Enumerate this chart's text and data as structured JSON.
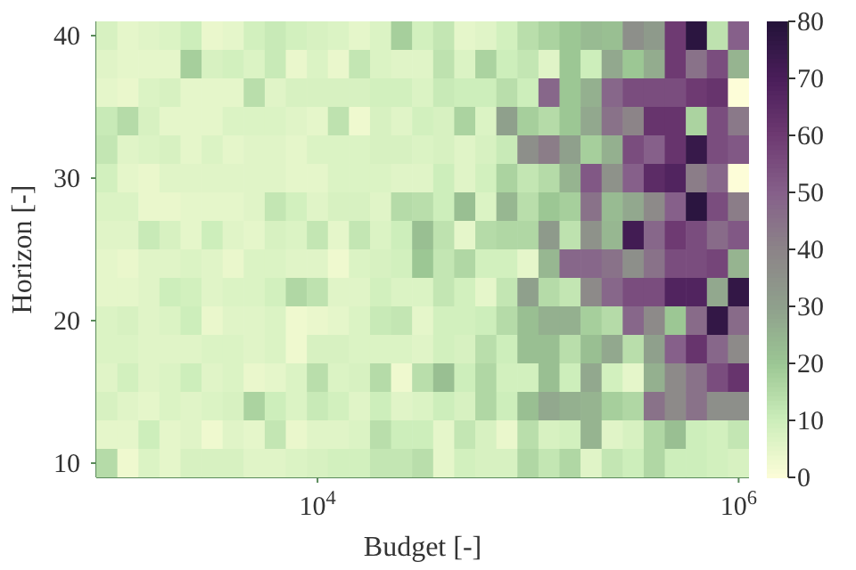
{
  "chart_data": {
    "type": "heatmap",
    "xlabel": "Budget [-]",
    "ylabel": "Horizon [-]",
    "log": "x",
    "xlim": [
      890,
      1120000
    ],
    "xticks": [
      {
        "value": 10000,
        "label": "10$^{4}$"
      },
      {
        "value": 1000000,
        "label": "10$^{6}$"
      }
    ],
    "ylim": [
      9,
      41
    ],
    "yticks": [
      10,
      20,
      30,
      40
    ],
    "clim": [
      0,
      80
    ],
    "cticks": [
      0,
      10,
      20,
      30,
      40,
      50,
      60,
      70,
      80
    ],
    "grid": false,
    "cells": [
      [
        8,
        5,
        6,
        7,
        10,
        4,
        5,
        9,
        11,
        9,
        8,
        7,
        5,
        7,
        18,
        9,
        12,
        5,
        6,
        9,
        14,
        17,
        20,
        23,
        22,
        36,
        32,
        60,
        78,
        13,
        50
      ],
      [
        6,
        5,
        5,
        5,
        18,
        8,
        9,
        7,
        11,
        4,
        7,
        4,
        12,
        7,
        6,
        6,
        13,
        7,
        17,
        10,
        12,
        6,
        20,
        10,
        28,
        20,
        27,
        60,
        45,
        55,
        25
      ],
      [
        5,
        4,
        7,
        8,
        5,
        5,
        5,
        14,
        6,
        8,
        8,
        8,
        8,
        9,
        9,
        7,
        11,
        10,
        10,
        14,
        10,
        48,
        20,
        26,
        48,
        55,
        55,
        55,
        60,
        62,
        0
      ],
      [
        11,
        15,
        8,
        5,
        5,
        5,
        7,
        7,
        7,
        6,
        5,
        13,
        3,
        8,
        6,
        9,
        8,
        17,
        7,
        30,
        18,
        15,
        20,
        28,
        45,
        40,
        62,
        62,
        17,
        55,
        43
      ],
      [
        12,
        6,
        7,
        8,
        5,
        7,
        5,
        6,
        6,
        5,
        7,
        7,
        7,
        8,
        8,
        7,
        8,
        6,
        8,
        11,
        36,
        42,
        30,
        18,
        26,
        55,
        50,
        62,
        75,
        55,
        52
      ],
      [
        9,
        5,
        4,
        6,
        6,
        6,
        6,
        6,
        6,
        5,
        5,
        7,
        7,
        7,
        6,
        6,
        10,
        6,
        9,
        17,
        12,
        15,
        25,
        52,
        35,
        50,
        65,
        68,
        42,
        48,
        0
      ],
      [
        7,
        7,
        4,
        4,
        5,
        5,
        5,
        6,
        12,
        9,
        6,
        8,
        8,
        6,
        15,
        14,
        10,
        22,
        7,
        24,
        14,
        20,
        18,
        45,
        23,
        28,
        38,
        50,
        78,
        55,
        42
      ],
      [
        6,
        6,
        11,
        8,
        5,
        10,
        6,
        5,
        8,
        7,
        12,
        5,
        12,
        7,
        10,
        22,
        13,
        5,
        15,
        16,
        16,
        32,
        13,
        35,
        24,
        72,
        48,
        60,
        55,
        47,
        52
      ],
      [
        5,
        4,
        6,
        6,
        7,
        6,
        4,
        7,
        7,
        6,
        6,
        3,
        7,
        8,
        9,
        20,
        12,
        16,
        9,
        9,
        5,
        24,
        48,
        48,
        45,
        36,
        45,
        55,
        55,
        57,
        25
      ],
      [
        5,
        5,
        6,
        10,
        9,
        6,
        7,
        7,
        9,
        16,
        13,
        6,
        6,
        9,
        7,
        7,
        12,
        9,
        5,
        12,
        30,
        15,
        12,
        38,
        48,
        55,
        55,
        68,
        68,
        28,
        76
      ],
      [
        7,
        8,
        6,
        7,
        10,
        4,
        6,
        6,
        7,
        3,
        4,
        5,
        7,
        11,
        12,
        5,
        9,
        9,
        10,
        15,
        22,
        26,
        26,
        18,
        15,
        48,
        38,
        20,
        47,
        76,
        47
      ],
      [
        7,
        7,
        6,
        6,
        6,
        7,
        7,
        6,
        7,
        3,
        8,
        8,
        7,
        7,
        7,
        6,
        9,
        8,
        14,
        10,
        22,
        22,
        14,
        22,
        28,
        14,
        30,
        50,
        62,
        48,
        38
      ],
      [
        6,
        9,
        6,
        7,
        10,
        6,
        7,
        4,
        5,
        7,
        14,
        7,
        8,
        15,
        3,
        14,
        22,
        10,
        16,
        9,
        9,
        22,
        10,
        28,
        9,
        5,
        26,
        38,
        45,
        55,
        62
      ],
      [
        8,
        6,
        5,
        7,
        6,
        7,
        8,
        17,
        10,
        7,
        11,
        9,
        6,
        10,
        6,
        7,
        10,
        8,
        16,
        10,
        22,
        28,
        26,
        25,
        18,
        16,
        45,
        38,
        45,
        36,
        36
      ],
      [
        5,
        5,
        10,
        5,
        6,
        3,
        6,
        5,
        12,
        4,
        6,
        6,
        7,
        14,
        10,
        10,
        5,
        12,
        8,
        4,
        14,
        8,
        9,
        25,
        6,
        8,
        16,
        22,
        10,
        9,
        12
      ],
      [
        15,
        3,
        7,
        5,
        8,
        8,
        8,
        6,
        6,
        7,
        8,
        9,
        9,
        12,
        12,
        14,
        5,
        9,
        8,
        8,
        16,
        12,
        16,
        6,
        12,
        10,
        16,
        10,
        10,
        9,
        8
      ]
    ]
  }
}
